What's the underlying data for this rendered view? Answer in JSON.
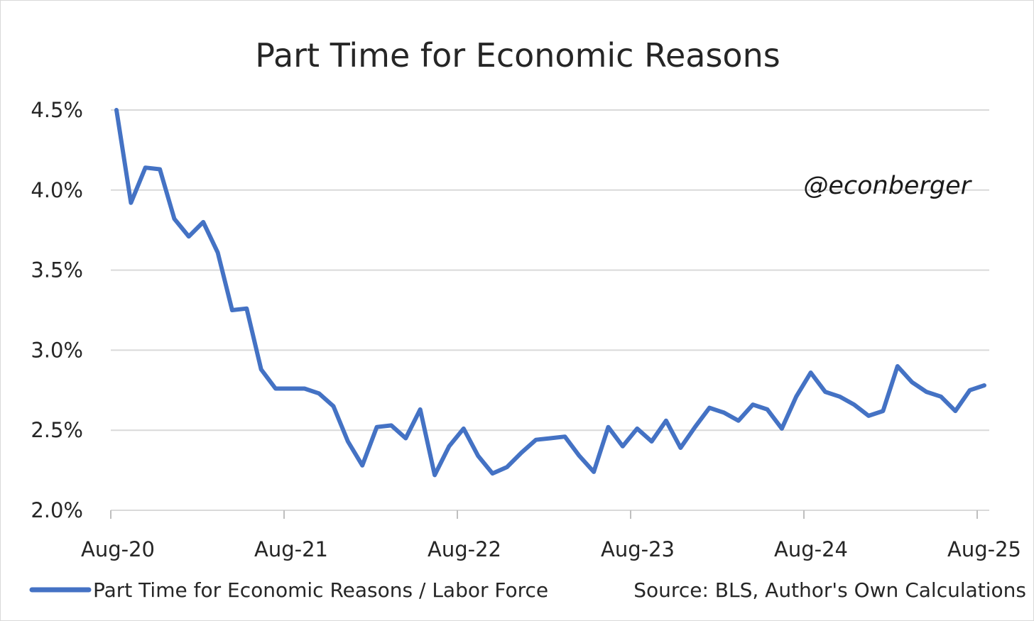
{
  "chart_data": {
    "type": "line",
    "title": "Part Time for Economic Reasons",
    "watermark": "@econberger",
    "source": "Source: BLS, Author's Own Calculations",
    "ylim": [
      2.0,
      4.5
    ],
    "y_ticks": [
      "4.5%",
      "4.0%",
      "3.5%",
      "3.0%",
      "2.5%",
      "2.0%"
    ],
    "x_ticks": [
      "Aug-20",
      "Aug-21",
      "Aug-22",
      "Aug-23",
      "Aug-24",
      "Aug-25"
    ],
    "grid": true,
    "legend_position": "bottom-left",
    "x_start": "Aug-20",
    "x_end": "Aug-25",
    "series": [
      {
        "name": "Part Time for Economic Reasons / Labor Force",
        "color": "#4472C4",
        "values": [
          4.5,
          3.92,
          4.14,
          4.13,
          3.82,
          3.71,
          3.8,
          3.61,
          3.25,
          3.26,
          2.88,
          2.76,
          2.76,
          2.76,
          2.73,
          2.65,
          2.43,
          2.28,
          2.52,
          2.53,
          2.45,
          2.63,
          2.22,
          2.4,
          2.51,
          2.34,
          2.23,
          2.27,
          2.36,
          2.44,
          2.45,
          2.46,
          2.34,
          2.24,
          2.52,
          2.4,
          2.51,
          2.43,
          2.56,
          2.39,
          2.52,
          2.64,
          2.61,
          2.56,
          2.66,
          2.63,
          2.51,
          2.71,
          2.86,
          2.74,
          2.71,
          2.66,
          2.59,
          2.62,
          2.9,
          2.8,
          2.74,
          2.71,
          2.62,
          2.75,
          2.78
        ]
      }
    ]
  }
}
